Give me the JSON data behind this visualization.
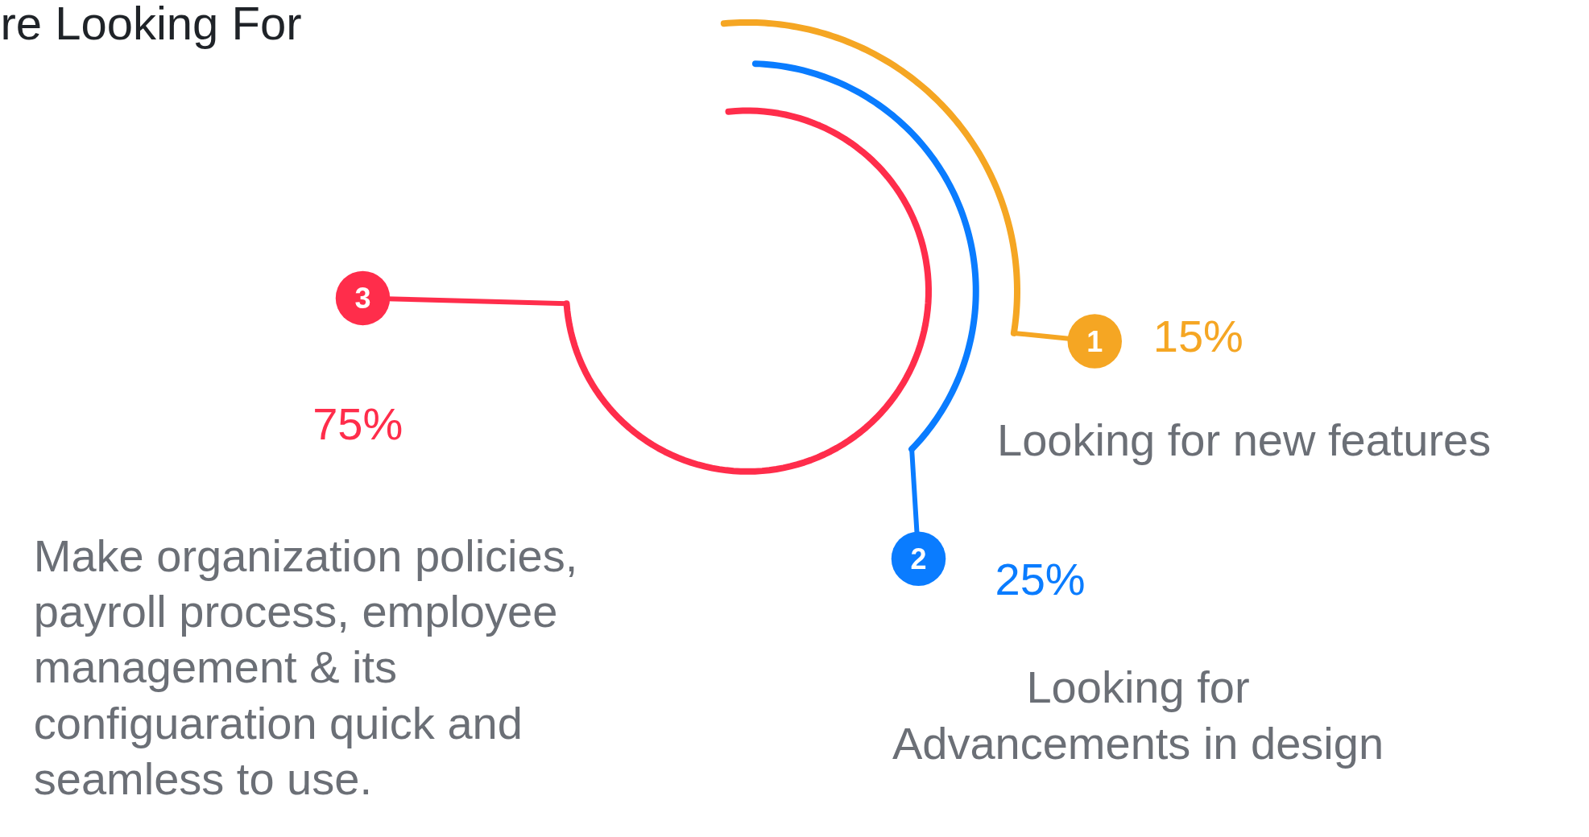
{
  "chart_data": {
    "type": "other",
    "title": "re Looking For",
    "categories": [
      "Looking for new features",
      "Looking for\nAdvancements in design",
      "Make organization policies,\npayroll process, employee\nmanagement & its\nconfiguaration quick and\nseamless to use."
    ],
    "values": [
      15,
      25,
      75
    ],
    "value_labels": [
      "15%",
      "25%",
      "75%"
    ],
    "colors": [
      "#f5a623",
      "#0a7cff",
      "#ff2d4b"
    ],
    "annotations": [
      "1",
      "2",
      "3"
    ]
  }
}
